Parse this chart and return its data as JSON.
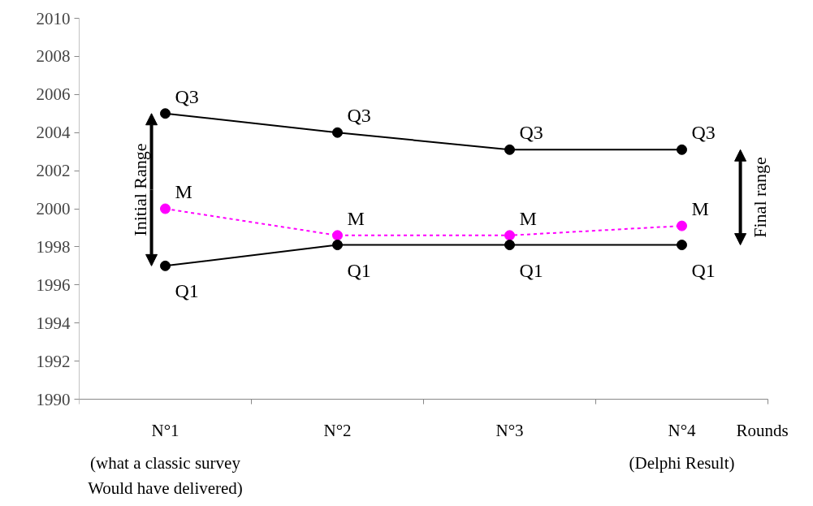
{
  "chart_data": {
    "type": "line",
    "xlabel": "Rounds",
    "categories": [
      "N°1",
      "N°2",
      "N°3",
      "N°4"
    ],
    "series": [
      {
        "name": "Q3",
        "color": "#000000",
        "values": [
          2005,
          2004,
          2003.1,
          2003.1
        ],
        "line_style": "solid"
      },
      {
        "name": "M",
        "color": "#ff00ff",
        "values": [
          2000,
          1998.6,
          1998.6,
          1999.1
        ],
        "line_style": "dashed"
      },
      {
        "name": "Q1",
        "color": "#000000",
        "values": [
          1997,
          1998.1,
          1998.1,
          1998.1
        ],
        "line_style": "solid"
      }
    ],
    "marker": "circle",
    "grid": false,
    "ylim": [
      1990,
      2010
    ],
    "yticks": [
      1990,
      1992,
      1994,
      1996,
      1998,
      2000,
      2002,
      2004,
      2006,
      2008,
      2010
    ],
    "annotations": [
      "Initial Range",
      "Final range",
      "(what a classic survey\nWould have delivered)",
      "(Delphi Result)"
    ]
  }
}
